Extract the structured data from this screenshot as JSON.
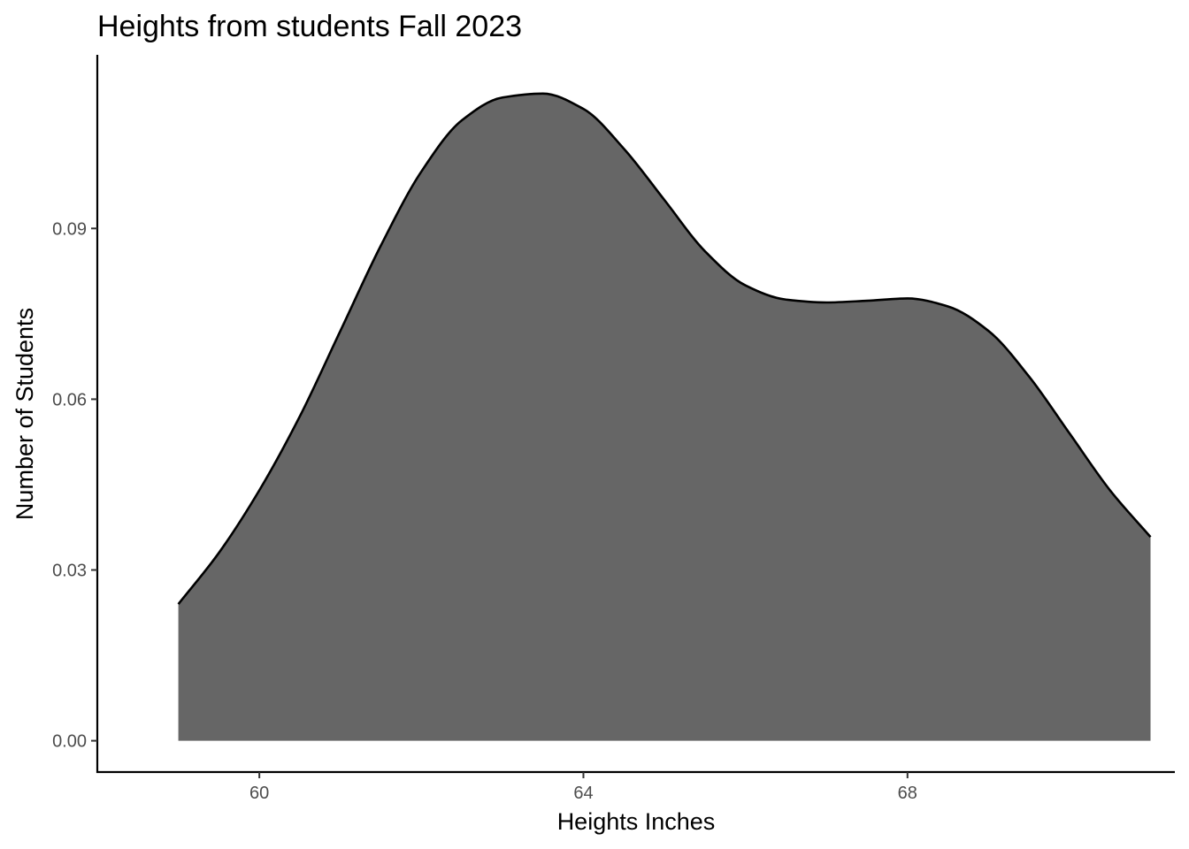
{
  "chart_data": {
    "type": "area",
    "title": "Heights from students Fall 2023",
    "xlabel": "Heights Inches",
    "ylabel": "Number of Students",
    "xlim": [
      58,
      71.3
    ],
    "ylim": [
      -0.0055,
      0.1205
    ],
    "x_ticks": [
      60,
      64,
      68
    ],
    "x_tick_labels": [
      "60",
      "64",
      "68"
    ],
    "y_ticks": [
      0.0,
      0.03,
      0.06,
      0.09
    ],
    "y_tick_labels": [
      "0.00",
      "0.03",
      "0.06",
      "0.09"
    ],
    "grid": false,
    "fill_color": "#666666",
    "line_color": "#000000",
    "series": [
      {
        "x": [
          59.0,
          59.5,
          60.0,
          60.5,
          61.0,
          61.5,
          62.0,
          62.5,
          63.0,
          63.5,
          64.0,
          64.5,
          65.0,
          65.5,
          66.0,
          66.5,
          67.0,
          67.5,
          68.0,
          68.5,
          69.0,
          69.5,
          70.0,
          70.5,
          71.0
        ],
        "y": [
          0.024,
          0.033,
          0.044,
          0.057,
          0.072,
          0.087,
          0.1,
          0.109,
          0.113,
          0.1137,
          0.111,
          0.104,
          0.095,
          0.086,
          0.08,
          0.0775,
          0.077,
          0.0773,
          0.0777,
          0.0763,
          0.072,
          0.064,
          0.054,
          0.044,
          0.0358
        ]
      }
    ]
  }
}
